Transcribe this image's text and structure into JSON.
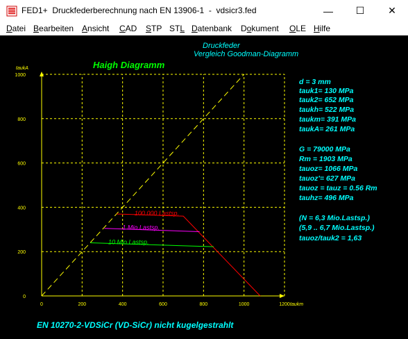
{
  "window": {
    "title": "FED1+  Druckfederberechnung nach EN 13906-1  -  vdsicr3.fed",
    "icon": "spring-app-icon",
    "controls": {
      "minimize": "—",
      "maximize": "☐",
      "close": "✕"
    }
  },
  "menu": [
    {
      "label": "Datei",
      "mnemonic": "D"
    },
    {
      "label": "Bearbeiten",
      "mnemonic": "B"
    },
    {
      "label": "Ansicht",
      "mnemonic": "A"
    },
    {
      "label": "CAD",
      "mnemonic": "C"
    },
    {
      "label": "STP",
      "mnemonic": "S"
    },
    {
      "label": "STL",
      "mnemonic": "L"
    },
    {
      "label": "Datenbank",
      "mnemonic": "D"
    },
    {
      "label": "Dokument",
      "mnemonic": "o"
    },
    {
      "label": "OLE",
      "mnemonic": "O"
    },
    {
      "label": "Hilfe",
      "mnemonic": "H"
    }
  ],
  "header": {
    "line1": "Druckfeder",
    "line2": "Vergleich Goodman-Diagramm"
  },
  "chart_data": {
    "type": "line",
    "title": "Haigh Diagramm",
    "xlabel": "taukm",
    "ylabel": "taukA",
    "xlim": [
      0,
      1200
    ],
    "ylim": [
      0,
      1000
    ],
    "xticks": [
      0,
      200,
      400,
      600,
      800,
      1000,
      1200
    ],
    "yticks": [
      0,
      200,
      400,
      600,
      800,
      1000
    ],
    "grid": true,
    "reference_line": {
      "name": "diagonal",
      "points": [
        [
          0,
          0
        ],
        [
          1000,
          1000
        ]
      ],
      "style": "dashed",
      "color": "#ffff00"
    },
    "series": [
      {
        "name": "100.000 Lastsp.",
        "color": "#ff0000",
        "points": [
          [
            370,
            370
          ],
          [
            700,
            360
          ],
          [
            1080,
            0
          ]
        ]
      },
      {
        "name": "1 Mio.Lastsp.",
        "color": "#ff00ff",
        "points": [
          [
            310,
            305
          ],
          [
            780,
            290
          ]
        ]
      },
      {
        "name": "10 Mio.Lastsp.",
        "color": "#00ff00",
        "points": [
          [
            240,
            240
          ],
          [
            850,
            222
          ]
        ]
      }
    ],
    "colors": {
      "axis": "#ffff00",
      "grid": "#ffff00",
      "title": "#00ff00",
      "tick_labels": "#ffff00"
    }
  },
  "params": {
    "d": "d  = 3 mm",
    "tauk1": "tauk1=  130 MPa",
    "tauk2": "tauk2=  652 MPa",
    "taukh": "taukh=  522 MPa",
    "taukm": "taukm=  391 MPa",
    "taukA": "taukA=  261 MPa",
    "G": "G  =  79000 MPa",
    "Rm": "Rm =  1903 MPa",
    "tauoz": "tauoz= 1066 MPa",
    "tauozp": "tauoz'=  627 MPa",
    "tauoz_eq": "tauoz = tauz = 0.56 Rm",
    "tauhz": "tauhz=  496 MPa",
    "n1": "(N = 6,3 Mio.Lastsp.)",
    "n2": "(5,9 .. 6,7 Mio.Lastsp.)",
    "ratio": "tauoz/tauk2 = 1,63"
  },
  "footer": "EN 10270-2-VDSiCr (VD-SiCr) nicht kugelgestrahlt",
  "colors": {
    "background": "#000000",
    "cyan_text": "#00ffff",
    "green_text": "#00ff00"
  }
}
